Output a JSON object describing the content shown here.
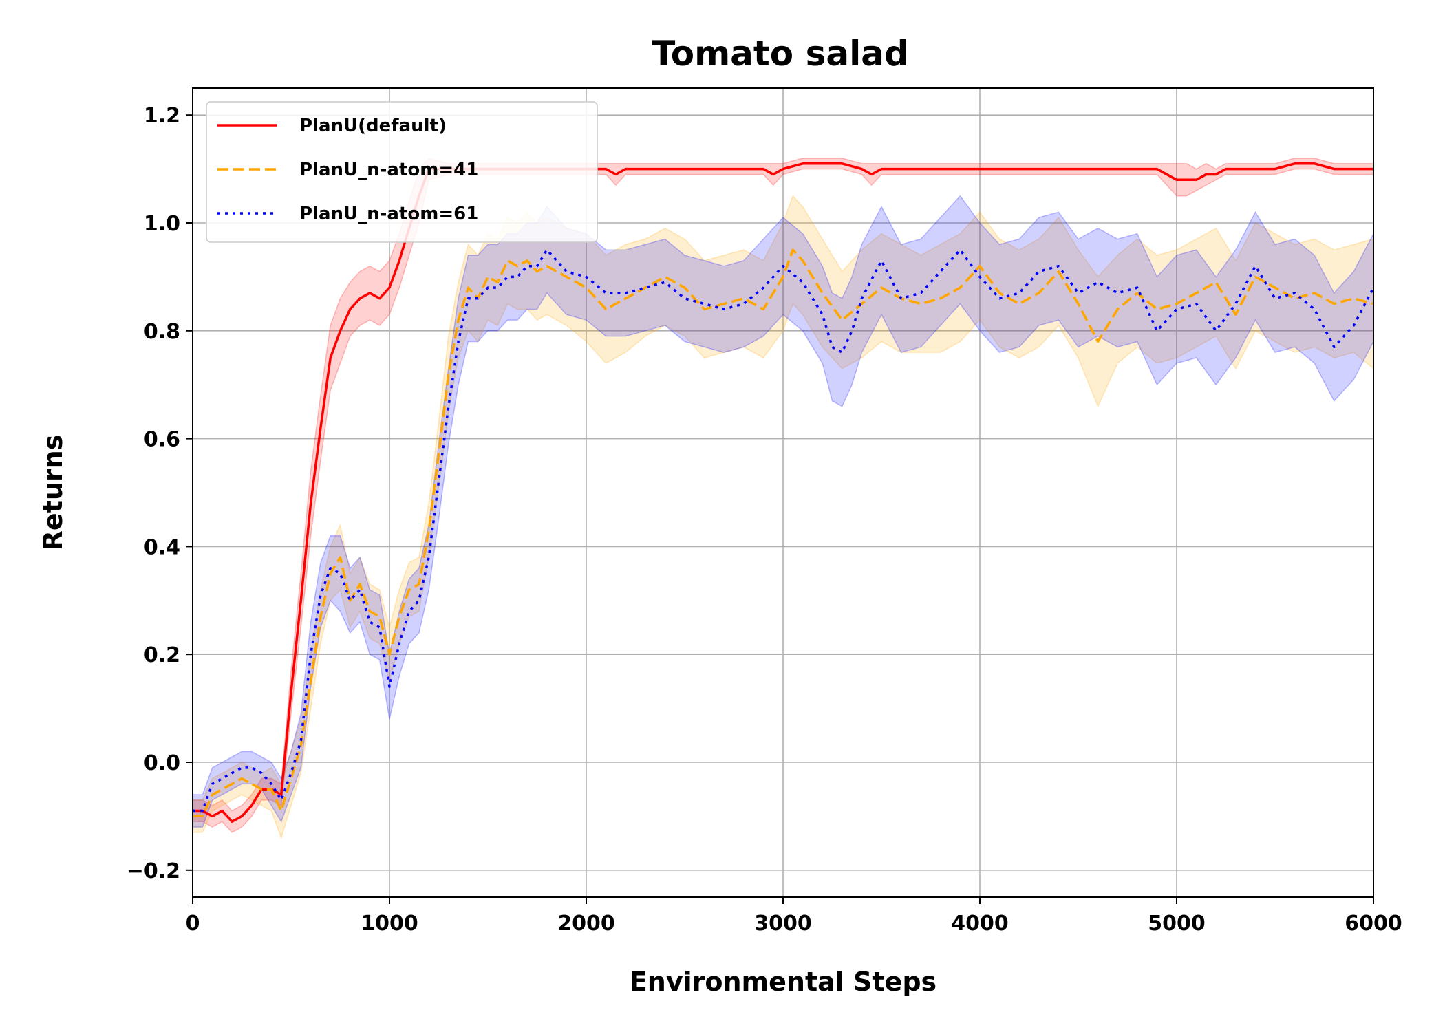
{
  "chart_data": {
    "type": "line",
    "title": "Tomato salad",
    "xlabel": "Environmental Steps",
    "ylabel": "Returns",
    "xlim": [
      0,
      6000
    ],
    "ylim": [
      -0.25,
      1.25
    ],
    "xticks": [
      0,
      1000,
      2000,
      3000,
      4000,
      5000,
      6000
    ],
    "xtick_labels": [
      "0",
      "1000",
      "2000",
      "3000",
      "4000",
      "5000",
      "6000"
    ],
    "yticks": [
      -0.2,
      0.0,
      0.2,
      0.4,
      0.6,
      0.8,
      1.0,
      1.2
    ],
    "ytick_labels": [
      "−0.2",
      "0.0",
      "0.2",
      "0.4",
      "0.6",
      "0.8",
      "1.0",
      "1.2"
    ],
    "grid": true,
    "legend_position": "top-left",
    "series": [
      {
        "name": "PlanU(default)",
        "color": "#ff0000",
        "style": "solid",
        "x": [
          0,
          50,
          100,
          150,
          200,
          250,
          300,
          350,
          400,
          450,
          500,
          550,
          600,
          650,
          700,
          750,
          800,
          850,
          900,
          950,
          1000,
          1050,
          1100,
          1150,
          1200,
          1300,
          1400,
          1500,
          1600,
          1700,
          1800,
          1900,
          2000,
          2100,
          2150,
          2200,
          2300,
          2400,
          2500,
          2600,
          2700,
          2800,
          2900,
          2950,
          3000,
          3100,
          3200,
          3300,
          3400,
          3450,
          3500,
          3600,
          3650,
          3700,
          3800,
          3900,
          4000,
          4100,
          4200,
          4300,
          4400,
          4500,
          4600,
          4700,
          4800,
          4900,
          4950,
          5000,
          5050,
          5100,
          5150,
          5200,
          5250,
          5300,
          5400,
          5500,
          5600,
          5700,
          5800,
          5900,
          6000
        ],
        "y": [
          -0.09,
          -0.09,
          -0.1,
          -0.09,
          -0.11,
          -0.1,
          -0.08,
          -0.05,
          -0.05,
          -0.06,
          0.13,
          0.3,
          0.48,
          0.62,
          0.75,
          0.8,
          0.84,
          0.86,
          0.87,
          0.86,
          0.88,
          0.93,
          0.99,
          1.05,
          1.1,
          1.1,
          1.1,
          1.1,
          1.1,
          1.1,
          1.1,
          1.1,
          1.1,
          1.1,
          1.09,
          1.1,
          1.1,
          1.1,
          1.1,
          1.1,
          1.1,
          1.1,
          1.1,
          1.09,
          1.1,
          1.11,
          1.11,
          1.11,
          1.1,
          1.09,
          1.1,
          1.1,
          1.1,
          1.1,
          1.1,
          1.1,
          1.1,
          1.1,
          1.1,
          1.1,
          1.1,
          1.1,
          1.1,
          1.1,
          1.1,
          1.1,
          1.09,
          1.08,
          1.08,
          1.08,
          1.09,
          1.09,
          1.1,
          1.1,
          1.1,
          1.1,
          1.11,
          1.11,
          1.1,
          1.1,
          1.1
        ],
        "band_halfwidth": [
          0.02,
          0.02,
          0.02,
          0.02,
          0.02,
          0.02,
          0.02,
          0.02,
          0.02,
          0.02,
          0.04,
          0.05,
          0.06,
          0.06,
          0.06,
          0.06,
          0.05,
          0.05,
          0.05,
          0.05,
          0.05,
          0.05,
          0.05,
          0.05,
          0.02,
          0.01,
          0.01,
          0.01,
          0.01,
          0.01,
          0.01,
          0.01,
          0.01,
          0.01,
          0.02,
          0.01,
          0.01,
          0.01,
          0.01,
          0.01,
          0.01,
          0.01,
          0.01,
          0.02,
          0.01,
          0.01,
          0.01,
          0.01,
          0.01,
          0.02,
          0.01,
          0.01,
          0.01,
          0.01,
          0.01,
          0.01,
          0.01,
          0.01,
          0.01,
          0.01,
          0.01,
          0.01,
          0.01,
          0.01,
          0.01,
          0.01,
          0.02,
          0.03,
          0.03,
          0.02,
          0.02,
          0.01,
          0.01,
          0.01,
          0.01,
          0.01,
          0.01,
          0.01,
          0.01,
          0.01,
          0.01
        ]
      },
      {
        "name": "PlanU_n-atom=41",
        "color": "#ffa500",
        "style": "dashed",
        "x": [
          0,
          50,
          100,
          150,
          200,
          250,
          300,
          350,
          400,
          450,
          500,
          550,
          600,
          650,
          700,
          750,
          800,
          850,
          900,
          950,
          1000,
          1050,
          1100,
          1150,
          1200,
          1250,
          1300,
          1350,
          1400,
          1450,
          1500,
          1550,
          1600,
          1650,
          1700,
          1750,
          1800,
          1900,
          2000,
          2100,
          2200,
          2300,
          2400,
          2500,
          2600,
          2700,
          2800,
          2900,
          3000,
          3050,
          3100,
          3200,
          3300,
          3400,
          3500,
          3600,
          3700,
          3800,
          3900,
          4000,
          4100,
          4200,
          4300,
          4400,
          4500,
          4600,
          4700,
          4800,
          4900,
          5000,
          5100,
          5200,
          5300,
          5400,
          5500,
          5600,
          5700,
          5800,
          5900,
          6000
        ],
        "y": [
          -0.1,
          -0.1,
          -0.06,
          -0.05,
          -0.04,
          -0.03,
          -0.04,
          -0.05,
          -0.05,
          -0.09,
          -0.03,
          0.03,
          0.15,
          0.27,
          0.35,
          0.38,
          0.3,
          0.33,
          0.28,
          0.27,
          0.2,
          0.27,
          0.32,
          0.33,
          0.43,
          0.57,
          0.72,
          0.82,
          0.88,
          0.86,
          0.9,
          0.89,
          0.93,
          0.92,
          0.93,
          0.91,
          0.92,
          0.9,
          0.88,
          0.84,
          0.86,
          0.88,
          0.9,
          0.88,
          0.84,
          0.85,
          0.86,
          0.84,
          0.9,
          0.95,
          0.93,
          0.87,
          0.82,
          0.85,
          0.88,
          0.86,
          0.85,
          0.86,
          0.88,
          0.92,
          0.87,
          0.85,
          0.87,
          0.91,
          0.85,
          0.78,
          0.84,
          0.87,
          0.84,
          0.85,
          0.87,
          0.89,
          0.83,
          0.9,
          0.88,
          0.86,
          0.87,
          0.85,
          0.86,
          0.85
        ],
        "band_halfwidth": [
          0.03,
          0.03,
          0.03,
          0.03,
          0.03,
          0.03,
          0.03,
          0.03,
          0.04,
          0.05,
          0.05,
          0.05,
          0.05,
          0.05,
          0.05,
          0.06,
          0.05,
          0.05,
          0.05,
          0.05,
          0.05,
          0.05,
          0.05,
          0.05,
          0.05,
          0.06,
          0.07,
          0.07,
          0.08,
          0.08,
          0.08,
          0.08,
          0.08,
          0.08,
          0.09,
          0.09,
          0.09,
          0.09,
          0.1,
          0.1,
          0.1,
          0.09,
          0.09,
          0.09,
          0.09,
          0.09,
          0.09,
          0.09,
          0.1,
          0.1,
          0.1,
          0.1,
          0.09,
          0.1,
          0.1,
          0.1,
          0.09,
          0.1,
          0.1,
          0.1,
          0.1,
          0.1,
          0.1,
          0.1,
          0.1,
          0.12,
          0.1,
          0.1,
          0.1,
          0.1,
          0.1,
          0.1,
          0.1,
          0.1,
          0.1,
          0.1,
          0.1,
          0.1,
          0.1,
          0.12
        ]
      },
      {
        "name": "PlanU_n-atom=61",
        "color": "#0000ff",
        "style": "dotted",
        "x": [
          0,
          50,
          100,
          150,
          200,
          250,
          300,
          350,
          400,
          450,
          500,
          550,
          600,
          650,
          700,
          750,
          800,
          850,
          900,
          950,
          1000,
          1050,
          1100,
          1150,
          1200,
          1250,
          1300,
          1350,
          1400,
          1450,
          1500,
          1550,
          1600,
          1650,
          1700,
          1750,
          1800,
          1900,
          2000,
          2100,
          2200,
          2300,
          2400,
          2500,
          2600,
          2700,
          2800,
          2900,
          3000,
          3100,
          3200,
          3250,
          3300,
          3350,
          3400,
          3500,
          3600,
          3700,
          3800,
          3900,
          4000,
          4100,
          4200,
          4300,
          4400,
          4500,
          4600,
          4700,
          4800,
          4900,
          5000,
          5100,
          5200,
          5300,
          5400,
          5500,
          5600,
          5700,
          5800,
          5900,
          6000
        ],
        "y": [
          -0.09,
          -0.09,
          -0.04,
          -0.03,
          -0.02,
          -0.01,
          -0.01,
          -0.02,
          -0.04,
          -0.07,
          -0.02,
          0.04,
          0.2,
          0.31,
          0.36,
          0.35,
          0.3,
          0.32,
          0.26,
          0.25,
          0.14,
          0.22,
          0.28,
          0.3,
          0.38,
          0.52,
          0.66,
          0.78,
          0.86,
          0.86,
          0.88,
          0.88,
          0.9,
          0.9,
          0.92,
          0.92,
          0.95,
          0.91,
          0.9,
          0.87,
          0.87,
          0.88,
          0.89,
          0.86,
          0.85,
          0.84,
          0.85,
          0.88,
          0.92,
          0.89,
          0.83,
          0.77,
          0.76,
          0.8,
          0.86,
          0.93,
          0.86,
          0.87,
          0.91,
          0.95,
          0.9,
          0.86,
          0.87,
          0.91,
          0.92,
          0.87,
          0.89,
          0.87,
          0.88,
          0.8,
          0.84,
          0.85,
          0.8,
          0.85,
          0.92,
          0.86,
          0.87,
          0.84,
          0.77,
          0.81,
          0.88
        ],
        "band_halfwidth": [
          0.03,
          0.03,
          0.03,
          0.03,
          0.03,
          0.03,
          0.03,
          0.03,
          0.04,
          0.04,
          0.04,
          0.05,
          0.06,
          0.06,
          0.06,
          0.07,
          0.06,
          0.06,
          0.06,
          0.06,
          0.06,
          0.06,
          0.06,
          0.06,
          0.06,
          0.07,
          0.07,
          0.08,
          0.08,
          0.08,
          0.08,
          0.08,
          0.08,
          0.08,
          0.08,
          0.08,
          0.08,
          0.08,
          0.08,
          0.08,
          0.08,
          0.08,
          0.08,
          0.08,
          0.08,
          0.08,
          0.08,
          0.09,
          0.09,
          0.09,
          0.09,
          0.1,
          0.1,
          0.1,
          0.1,
          0.1,
          0.1,
          0.1,
          0.1,
          0.1,
          0.1,
          0.1,
          0.1,
          0.1,
          0.1,
          0.1,
          0.1,
          0.1,
          0.1,
          0.1,
          0.1,
          0.1,
          0.1,
          0.1,
          0.1,
          0.1,
          0.1,
          0.1,
          0.1,
          0.1,
          0.1
        ]
      }
    ]
  }
}
